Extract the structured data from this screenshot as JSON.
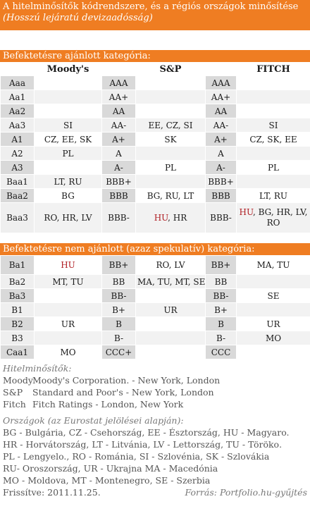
{
  "title": "A hitelminősítők kódrendszere, és a régiós országok minősítése",
  "subtitle": "(Hosszú lejáratú devizaadósság)",
  "sections": {
    "investment": "Befektetésre ajánlott kategória:",
    "speculative": "Befektetésre nem ajánlott (azaz spekulatív) kategória:"
  },
  "headers": {
    "moodys": "Moody's",
    "sp": "S&P",
    "fitch": "FITCH"
  },
  "investment_rows": [
    {
      "m": "Aaa",
      "mc": "",
      "s": "AAA",
      "sc": "",
      "f": "AAA",
      "fc": ""
    },
    {
      "m": "Aa1",
      "mc": "",
      "s": "AA+",
      "sc": "",
      "f": "AA+",
      "fc": ""
    },
    {
      "m": "Aa2",
      "mc": "",
      "s": "AA",
      "sc": "",
      "f": "AA",
      "fc": ""
    },
    {
      "m": "Aa3",
      "mc": "SI",
      "s": "AA-",
      "sc": "EE, CZ, SI",
      "f": "AA-",
      "fc": "SI"
    },
    {
      "m": "A1",
      "mc": "CZ, EE, SK",
      "s": "A+",
      "sc": "SK",
      "f": "A+",
      "fc": "CZ, SK, EE"
    },
    {
      "m": "A2",
      "mc": "PL",
      "s": "A",
      "sc": "",
      "f": "A",
      "fc": ""
    },
    {
      "m": "A3",
      "mc": "",
      "s": "A-",
      "sc": "PL",
      "f": "A-",
      "fc": "PL"
    },
    {
      "m": "Baa1",
      "mc": "LT, RU",
      "s": "BBB+",
      "sc": "",
      "f": "BBB+",
      "fc": ""
    },
    {
      "m": "Baa2",
      "mc": "BG",
      "s": "BBB",
      "sc": "BG, RU, LT",
      "f": "BBB",
      "fc": "LT, RU"
    }
  ],
  "baa3": {
    "m": "Baa3",
    "mc": "RO, HR, LV",
    "s": "BBB-",
    "sc_hu": "HU",
    "sc_rest": ", HR",
    "f": "BBB-",
    "fc_hu": "HU",
    "fc_rest": ", BG, HR, LV,",
    "fc_line2": "RO"
  },
  "ba1": {
    "m": "Ba1",
    "mc_hu": "HU",
    "s": "BB+",
    "sc": "RO, LV",
    "f": "BB+",
    "fc": "MA, TU"
  },
  "speculative_rows": [
    {
      "m": "Ba2",
      "mc": "MT, TU",
      "s": "BB",
      "sc": "MA, TU, MT, SE",
      "f": "BB",
      "fc": ""
    },
    {
      "m": "Ba3",
      "mc": "",
      "s": "BB-",
      "sc": "",
      "f": "BB-",
      "fc": "SE"
    },
    {
      "m": "B1",
      "mc": "",
      "s": "B+",
      "sc": "UR",
      "f": "B+",
      "fc": ""
    },
    {
      "m": "B2",
      "mc": "UR",
      "s": "B",
      "sc": "",
      "f": "B",
      "fc": "UR"
    },
    {
      "m": "B3",
      "mc": "",
      "s": "B-",
      "sc": "",
      "f": "B-",
      "fc": "MO"
    },
    {
      "m": "Caa1",
      "mc": "MO",
      "s": "CCC+",
      "sc": "",
      "f": "CCC",
      "fc": ""
    }
  ],
  "legend": {
    "heading": "Hitelminősítők:",
    "items": [
      {
        "abbr": "Moody",
        "text": "Moody's Corporation. - New York, London"
      },
      {
        "abbr": "S&P",
        "text": "Standard and Poor's  - New York, London"
      },
      {
        "abbr": "Fitch",
        "text": "Fitch Ratings - London, New York"
      }
    ]
  },
  "countries": {
    "heading": "Országok (az Eurostat jelölései alapján):",
    "lines": [
      "BG - Bulgária, CZ - Csehország, EE - Észtország, HU - Magyaro.",
      "HR - Horvátország, LT - Litvánia, LV - Lettország, TU - Törökо.",
      "PL - Lengyelo., RO - Románia, SI - Szlovénia, SK - Szlovákia",
      "RU- Oroszország, UR - Ukrajna MA - Macedónia",
      "MO - Moldova, MT - Montenegro, SE - Szerbia"
    ]
  },
  "footer": {
    "updated": "Frissítve: 2011.11.25.",
    "source": "Forrás: Portfolio.hu-gyűjtés"
  },
  "colors": {
    "accent": "#ef7d22",
    "highlight": "#b01f24"
  }
}
